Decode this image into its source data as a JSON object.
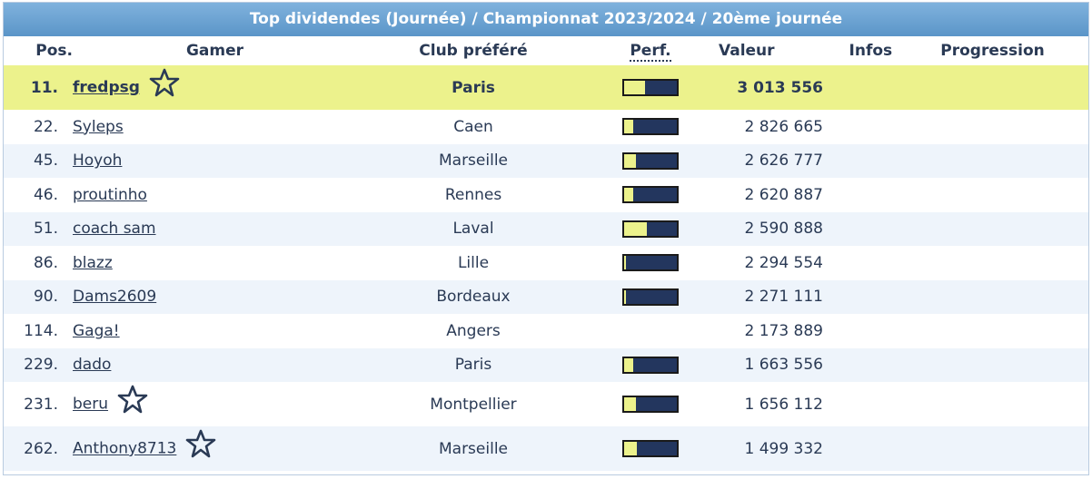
{
  "title": "Top dividendes (Journée) / Championnat 2023/2024 / 20ème journée",
  "headers": {
    "pos": "Pos.",
    "gamer": "Gamer",
    "club": "Club préféré",
    "perf": "Perf.",
    "valeur": "Valeur",
    "infos": "Infos",
    "progression": "Progression"
  },
  "colors": {
    "title_bg": "#6aa3d4",
    "highlight_row": "#ecf28c",
    "alt_row": "#eef4fb",
    "bar_dark": "#23365e",
    "bar_fill": "#ecf28c"
  },
  "rows": [
    {
      "pos": "11.",
      "gamer": "fredpsg",
      "star": true,
      "club": "Paris",
      "perf": 0.4,
      "valeur": "3 013 556",
      "highlight": true
    },
    {
      "pos": "22.",
      "gamer": "Syleps",
      "star": false,
      "club": "Caen",
      "perf": 0.17,
      "valeur": "2 826 665"
    },
    {
      "pos": "45.",
      "gamer": "Hoyoh",
      "star": false,
      "club": "Marseille",
      "perf": 0.22,
      "valeur": "2 626 777"
    },
    {
      "pos": "46.",
      "gamer": "proutinho",
      "star": false,
      "club": "Rennes",
      "perf": 0.17,
      "valeur": "2 620 887"
    },
    {
      "pos": "51.",
      "gamer": "coach sam",
      "star": false,
      "club": "Laval",
      "perf": 0.43,
      "valeur": "2 590 888"
    },
    {
      "pos": "86.",
      "gamer": "blazz",
      "star": false,
      "club": "Lille",
      "perf": 0.04,
      "valeur": "2 294 554"
    },
    {
      "pos": "90.",
      "gamer": "Dams2609",
      "star": false,
      "club": "Bordeaux",
      "perf": 0.04,
      "valeur": "2 271 111"
    },
    {
      "pos": "114.",
      "gamer": "Gaga!",
      "star": false,
      "club": "Angers",
      "perf": null,
      "valeur": "2 173 889"
    },
    {
      "pos": "229.",
      "gamer": "dado",
      "star": false,
      "club": "Paris",
      "perf": 0.17,
      "valeur": "1 663 556"
    },
    {
      "pos": "231.",
      "gamer": "beru",
      "star": true,
      "club": "Montpellier",
      "perf": 0.22,
      "valeur": "1 656 112"
    },
    {
      "pos": "262.",
      "gamer": "Anthony8713",
      "star": true,
      "club": "Marseille",
      "perf": 0.24,
      "valeur": "1 499 332"
    }
  ]
}
